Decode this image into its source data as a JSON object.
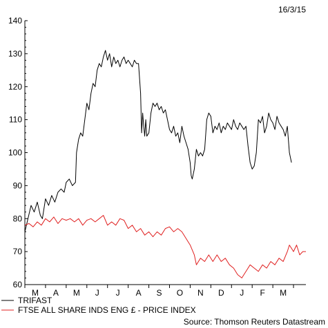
{
  "chart_data": {
    "type": "line",
    "date_stamp": "16/3/15",
    "source": "Source: Thomson Reuters Datastream",
    "ylim": [
      60,
      140
    ],
    "yticks": [
      60,
      70,
      80,
      90,
      100,
      110,
      120,
      130,
      140
    ],
    "xticks": [
      "M",
      "A",
      "M",
      "J",
      "J",
      "A",
      "S",
      "O",
      "N",
      "D",
      "J",
      "F",
      "M"
    ],
    "grid": false,
    "legend_position": "bottom-left",
    "series": [
      {
        "name": "TRIFAST",
        "color": "#000000",
        "points": [
          [
            0.0,
            76
          ],
          [
            0.15,
            80
          ],
          [
            0.3,
            84
          ],
          [
            0.45,
            82
          ],
          [
            0.6,
            85
          ],
          [
            0.75,
            81
          ],
          [
            0.85,
            80
          ],
          [
            1.0,
            86
          ],
          [
            1.15,
            84
          ],
          [
            1.3,
            87
          ],
          [
            1.45,
            85
          ],
          [
            1.6,
            88
          ],
          [
            1.75,
            89
          ],
          [
            1.9,
            88
          ],
          [
            2.0,
            91
          ],
          [
            2.15,
            92
          ],
          [
            2.3,
            90
          ],
          [
            2.45,
            91
          ],
          [
            2.5,
            100
          ],
          [
            2.6,
            104
          ],
          [
            2.7,
            106
          ],
          [
            2.8,
            105
          ],
          [
            2.9,
            110
          ],
          [
            3.0,
            115
          ],
          [
            3.1,
            113
          ],
          [
            3.2,
            118
          ],
          [
            3.3,
            121
          ],
          [
            3.4,
            120
          ],
          [
            3.5,
            125
          ],
          [
            3.6,
            127
          ],
          [
            3.7,
            126
          ],
          [
            3.8,
            129
          ],
          [
            3.9,
            131
          ],
          [
            4.0,
            128
          ],
          [
            4.1,
            130
          ],
          [
            4.2,
            126
          ],
          [
            4.3,
            129
          ],
          [
            4.4,
            127
          ],
          [
            4.5,
            128
          ],
          [
            4.6,
            126
          ],
          [
            4.7,
            128
          ],
          [
            4.8,
            129
          ],
          [
            4.9,
            127
          ],
          [
            5.0,
            128
          ],
          [
            5.1,
            127
          ],
          [
            5.2,
            126
          ],
          [
            5.3,
            128
          ],
          [
            5.4,
            127
          ],
          [
            5.5,
            127
          ],
          [
            5.6,
            118
          ],
          [
            5.65,
            106
          ],
          [
            5.7,
            112
          ],
          [
            5.75,
            108
          ],
          [
            5.8,
            105
          ],
          [
            5.85,
            110
          ],
          [
            5.9,
            105
          ],
          [
            6.0,
            106
          ],
          [
            6.1,
            112
          ],
          [
            6.2,
            115
          ],
          [
            6.3,
            114
          ],
          [
            6.4,
            115
          ],
          [
            6.5,
            113
          ],
          [
            6.6,
            114
          ],
          [
            6.7,
            112
          ],
          [
            6.8,
            113
          ],
          [
            6.9,
            110
          ],
          [
            7.0,
            107
          ],
          [
            7.1,
            106
          ],
          [
            7.2,
            108
          ],
          [
            7.3,
            105
          ],
          [
            7.4,
            106
          ],
          [
            7.5,
            103
          ],
          [
            7.6,
            108
          ],
          [
            7.7,
            105
          ],
          [
            7.8,
            103
          ],
          [
            7.9,
            101
          ],
          [
            8.0,
            97
          ],
          [
            8.05,
            93
          ],
          [
            8.1,
            92
          ],
          [
            8.2,
            95
          ],
          [
            8.3,
            101
          ],
          [
            8.4,
            99
          ],
          [
            8.5,
            100
          ],
          [
            8.6,
            99
          ],
          [
            8.7,
            101
          ],
          [
            8.8,
            110
          ],
          [
            8.9,
            112
          ],
          [
            9.0,
            111
          ],
          [
            9.1,
            106
          ],
          [
            9.2,
            108
          ],
          [
            9.3,
            107
          ],
          [
            9.4,
            109
          ],
          [
            9.5,
            106
          ],
          [
            9.6,
            108
          ],
          [
            9.7,
            107
          ],
          [
            9.8,
            109
          ],
          [
            9.9,
            108
          ],
          [
            10.0,
            107
          ],
          [
            10.1,
            110
          ],
          [
            10.2,
            108
          ],
          [
            10.3,
            107
          ],
          [
            10.4,
            109
          ],
          [
            10.5,
            108
          ],
          [
            10.6,
            107
          ],
          [
            10.7,
            108
          ],
          [
            10.8,
            102
          ],
          [
            10.9,
            97
          ],
          [
            11.0,
            95
          ],
          [
            11.1,
            96
          ],
          [
            11.2,
            100
          ],
          [
            11.3,
            110
          ],
          [
            11.4,
            109
          ],
          [
            11.5,
            111
          ],
          [
            11.6,
            106
          ],
          [
            11.7,
            108
          ],
          [
            11.8,
            112
          ],
          [
            11.9,
            110
          ],
          [
            12.0,
            109
          ],
          [
            12.1,
            107
          ],
          [
            12.2,
            111
          ],
          [
            12.3,
            109
          ],
          [
            12.4,
            108
          ],
          [
            12.5,
            107
          ],
          [
            12.6,
            105
          ],
          [
            12.7,
            108
          ],
          [
            12.8,
            100
          ],
          [
            12.9,
            97
          ]
        ]
      },
      {
        "name": "FTSE ALL SHARE INDS ENG £ - PRICE INDEX",
        "color": "#e02020",
        "points": [
          [
            0.0,
            78
          ],
          [
            0.2,
            78.5
          ],
          [
            0.4,
            77.5
          ],
          [
            0.6,
            79
          ],
          [
            0.8,
            78
          ],
          [
            1.0,
            80
          ],
          [
            1.2,
            79
          ],
          [
            1.4,
            80.5
          ],
          [
            1.6,
            78.5
          ],
          [
            1.8,
            80
          ],
          [
            2.0,
            79.5
          ],
          [
            2.2,
            80
          ],
          [
            2.4,
            79
          ],
          [
            2.6,
            80
          ],
          [
            2.8,
            78
          ],
          [
            3.0,
            79.5
          ],
          [
            3.2,
            80
          ],
          [
            3.4,
            79
          ],
          [
            3.6,
            80
          ],
          [
            3.8,
            81
          ],
          [
            4.0,
            78
          ],
          [
            4.2,
            79
          ],
          [
            4.4,
            78
          ],
          [
            4.6,
            80
          ],
          [
            4.8,
            79.5
          ],
          [
            5.0,
            77
          ],
          [
            5.2,
            78
          ],
          [
            5.4,
            76
          ],
          [
            5.6,
            77
          ],
          [
            5.8,
            75
          ],
          [
            6.0,
            76
          ],
          [
            6.2,
            74.5
          ],
          [
            6.4,
            76
          ],
          [
            6.6,
            75
          ],
          [
            6.8,
            77
          ],
          [
            7.0,
            77.5
          ],
          [
            7.2,
            76
          ],
          [
            7.4,
            77
          ],
          [
            7.6,
            76
          ],
          [
            7.8,
            74
          ],
          [
            8.0,
            72
          ],
          [
            8.2,
            69
          ],
          [
            8.3,
            66
          ],
          [
            8.5,
            68
          ],
          [
            8.7,
            67
          ],
          [
            8.9,
            69
          ],
          [
            9.1,
            67
          ],
          [
            9.3,
            69
          ],
          [
            9.5,
            67
          ],
          [
            9.7,
            68
          ],
          [
            9.9,
            66
          ],
          [
            10.1,
            65
          ],
          [
            10.3,
            63
          ],
          [
            10.5,
            62
          ],
          [
            10.7,
            64
          ],
          [
            10.9,
            66
          ],
          [
            11.1,
            65
          ],
          [
            11.3,
            64
          ],
          [
            11.5,
            66
          ],
          [
            11.7,
            65
          ],
          [
            11.9,
            67
          ],
          [
            12.1,
            66
          ],
          [
            12.3,
            68
          ],
          [
            12.5,
            67
          ],
          [
            12.7,
            70
          ],
          [
            12.8,
            72
          ],
          [
            12.9,
            71
          ],
          [
            13.0,
            70
          ],
          [
            13.15,
            72
          ],
          [
            13.3,
            69
          ],
          [
            13.45,
            70
          ],
          [
            13.6,
            70
          ]
        ]
      }
    ]
  }
}
